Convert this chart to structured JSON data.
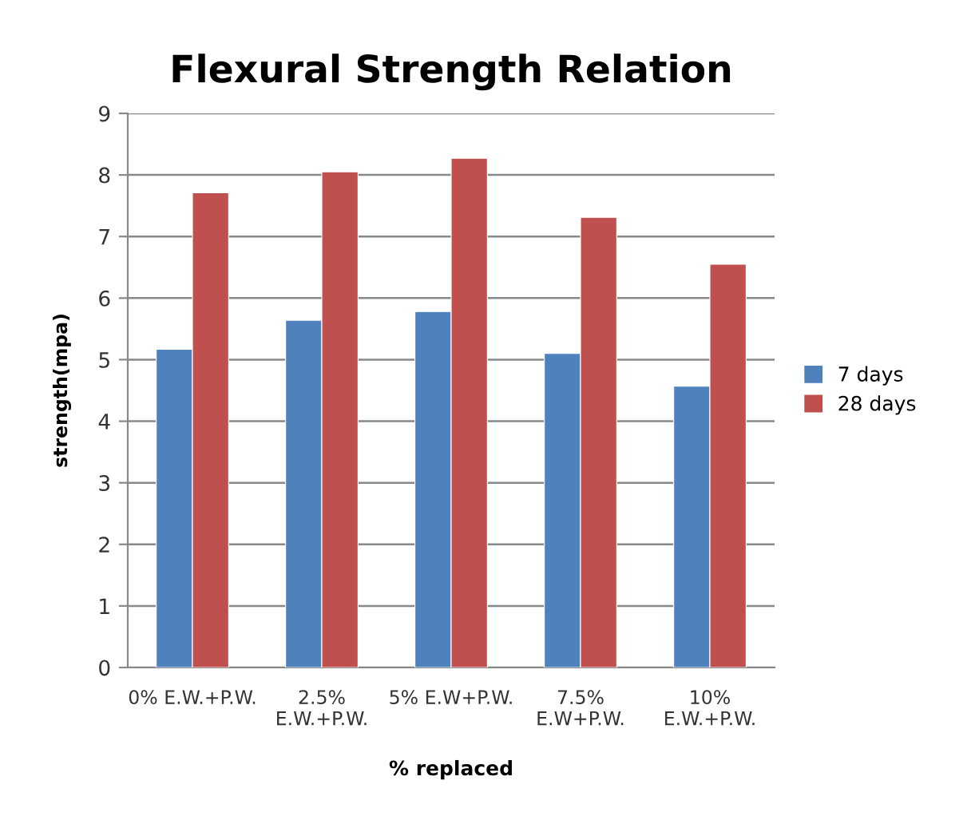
{
  "chart_data": {
    "type": "bar",
    "title": "Flexural Strength Relation",
    "xlabel": "% replaced",
    "ylabel": "strength(mpa)",
    "categories": [
      "0% E.W.+P.W.",
      "2.5%\nE.W.+P.W.",
      "5% E.W+P.W.",
      "7.5%\nE.W+P.W.",
      "10%\nE.W.+P.W."
    ],
    "series": [
      {
        "name": "7 days",
        "color": "#4f81bd",
        "values": [
          5.17,
          5.64,
          5.78,
          5.1,
          4.57
        ]
      },
      {
        "name": "28 days",
        "color": "#c0504d",
        "values": [
          7.71,
          8.05,
          8.27,
          7.31,
          6.55
        ]
      }
    ],
    "ylim": [
      0,
      9
    ],
    "yticks": [
      0,
      1,
      2,
      3,
      4,
      5,
      6,
      7,
      8,
      9
    ],
    "grid": "y",
    "legend": "right"
  }
}
